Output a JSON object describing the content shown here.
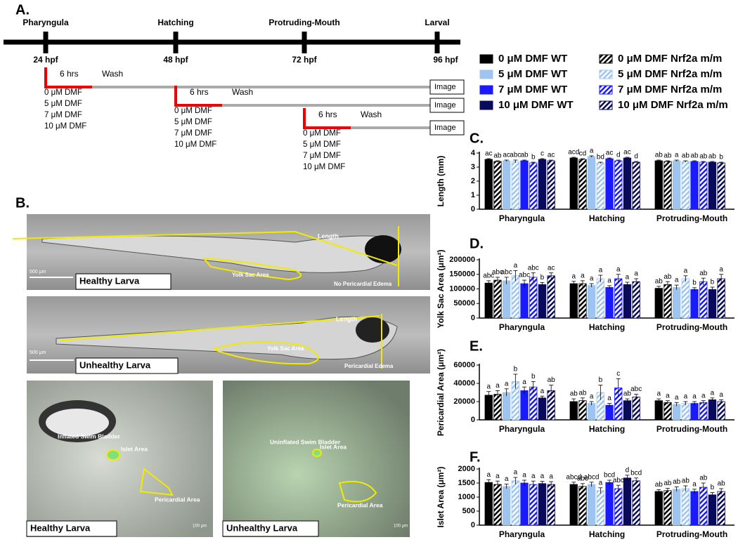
{
  "panel_labels": [
    "A.",
    "B.",
    "C.",
    "D.",
    "E.",
    "F."
  ],
  "timeline": {
    "stages": [
      {
        "name": "Pharyngula",
        "time": "24 hpf"
      },
      {
        "name": "Hatching",
        "time": "48 hpf"
      },
      {
        "name": "Protruding-Mouth",
        "time": "72 hpf"
      },
      {
        "name": "Larval",
        "time": "96 hpf"
      }
    ],
    "treatments": [
      {
        "duration": "6 hrs",
        "wash": "Wash",
        "image": "Image",
        "doses": [
          "0 μM DMF",
          "5 μM DMF",
          "7 μM DMF",
          "10 μM DMF"
        ]
      },
      {
        "duration": "6 hrs",
        "wash": "Wash",
        "image": "Image",
        "doses": [
          "0 μM DMF",
          "5 μM DMF",
          "7 μM DMF",
          "10 μM DMF"
        ]
      },
      {
        "duration": "6 hrs",
        "wash": "Wash",
        "image": "Image",
        "doses": [
          "0 μM DMF",
          "5 μM DMF",
          "7 μM DMF",
          "10 μM DMF"
        ]
      }
    ]
  },
  "images": {
    "whole": [
      {
        "label": "Healthy Larva",
        "scale": "500 μm",
        "annotations": [
          "Length",
          "Yolk Sac Area",
          "No Pericardial Edema"
        ]
      },
      {
        "label": "Unhealthy Larva",
        "scale": "500 μm",
        "annotations": [
          "Length",
          "Yolk Sac Area",
          "Pericardial Edema"
        ]
      }
    ],
    "closeup": [
      {
        "label": "Healthy Larva",
        "scale": "100 μm",
        "annotations": [
          "Inflated Swim Bladder",
          "Islet Area",
          "Pericardial Area"
        ]
      },
      {
        "label": "Unhealthy Larva",
        "scale": "100 μm",
        "annotations": [
          "Uninflated Swim Bladder",
          "Islet Area",
          "Pericardial Area"
        ]
      }
    ]
  },
  "chart_data": [
    {
      "type": "bar",
      "ylabel": "Length (mm)",
      "categories": [
        "Pharyngula",
        "Hatching",
        "Protruding-Mouth"
      ],
      "ylim": [
        0,
        4
      ],
      "yticks": [
        0,
        1,
        2,
        3,
        4
      ],
      "series": [
        {
          "name": "0 μM DMF WT",
          "color": "#000000",
          "hatch": false,
          "values": [
            3.55,
            3.65,
            3.45
          ],
          "errors": [
            0.05,
            0.05,
            0.05
          ],
          "letters": [
            "ac",
            "acd",
            "ab"
          ]
        },
        {
          "name": "0 μM DMF Nrf2a m/m",
          "color": "#000000",
          "hatch": true,
          "values": [
            3.4,
            3.55,
            3.4
          ],
          "errors": [
            0.05,
            0.05,
            0.05
          ],
          "letters": [
            "ab",
            "cd",
            "ab"
          ]
        },
        {
          "name": "5 μM DMF WT",
          "color": "#9ec5f0",
          "hatch": false,
          "values": [
            3.45,
            3.75,
            3.45
          ],
          "errors": [
            0.05,
            0.05,
            0.05
          ],
          "letters": [
            "ac",
            "a",
            "a"
          ]
        },
        {
          "name": "5 μM DMF Nrf2a m/m",
          "color": "#9ec5f0",
          "hatch": true,
          "values": [
            3.4,
            3.3,
            3.4
          ],
          "errors": [
            0.1,
            0.05,
            0.05
          ],
          "letters": [
            "abc",
            "bd",
            "ab"
          ]
        },
        {
          "name": "7 μM DMF WT",
          "color": "#1a1aff",
          "hatch": false,
          "values": [
            3.45,
            3.6,
            3.4
          ],
          "errors": [
            0.05,
            0.05,
            0.05
          ],
          "letters": [
            "ab",
            "ac",
            "ab"
          ]
        },
        {
          "name": "7 μM DMF Nrf2a m/m",
          "color": "#1a1aff",
          "hatch": true,
          "values": [
            3.3,
            3.45,
            3.35
          ],
          "errors": [
            0.05,
            0.05,
            0.05
          ],
          "letters": [
            "b",
            "d",
            "ab"
          ]
        },
        {
          "name": "10 μM DMF WT",
          "color": "#0a0a5c",
          "hatch": false,
          "values": [
            3.55,
            3.65,
            3.35
          ],
          "errors": [
            0.05,
            0.05,
            0.05
          ],
          "letters": [
            "c",
            "ac",
            "ab"
          ]
        },
        {
          "name": "10 μM DMF Nrf2a m/m",
          "color": "#0a0a5c",
          "hatch": true,
          "values": [
            3.45,
            3.35,
            3.3
          ],
          "errors": [
            0.05,
            0.05,
            0.05
          ],
          "letters": [
            "ac",
            "d",
            "b"
          ]
        }
      ]
    },
    {
      "type": "bar",
      "ylabel": "Yolk Sac Area (μm²)",
      "categories": [
        "Pharyngula",
        "Hatching",
        "Protruding-Mouth"
      ],
      "ylim": [
        0,
        200000
      ],
      "yticks": [
        0,
        50000,
        100000,
        150000,
        200000
      ],
      "series": [
        {
          "name": "0 μM DMF WT",
          "color": "#000000",
          "hatch": false,
          "values": [
            120000,
            118000,
            102000
          ],
          "errors": [
            8000,
            8000,
            7000
          ],
          "letters": [
            "abc",
            "a",
            "ab"
          ]
        },
        {
          "name": "0 μM DMF Nrf2a m/m",
          "color": "#000000",
          "hatch": true,
          "values": [
            130000,
            118000,
            115000
          ],
          "errors": [
            10000,
            10000,
            10000
          ],
          "letters": [
            "abc",
            "a",
            "ab"
          ]
        },
        {
          "name": "5 μM DMF WT",
          "color": "#9ec5f0",
          "hatch": false,
          "values": [
            128000,
            112000,
            105000
          ],
          "errors": [
            12000,
            6000,
            8000
          ],
          "letters": [
            "abc",
            "a",
            "a"
          ]
        },
        {
          "name": "5 μM DMF Nrf2a m/m",
          "color": "#9ec5f0",
          "hatch": true,
          "values": [
            145000,
            135000,
            135000
          ],
          "errors": [
            18000,
            12000,
            10000
          ],
          "letters": [
            "a",
            "a",
            "a"
          ]
        },
        {
          "name": "7 μM DMF WT",
          "color": "#1a1aff",
          "hatch": false,
          "values": [
            118000,
            105000,
            98000
          ],
          "errors": [
            12000,
            6000,
            6000
          ],
          "letters": [
            "abc",
            "a",
            "b"
          ]
        },
        {
          "name": "7 μM DMF Nrf2a m/m",
          "color": "#1a1aff",
          "hatch": true,
          "values": [
            140000,
            135000,
            125000
          ],
          "errors": [
            15000,
            15000,
            12000
          ],
          "letters": [
            "abc",
            "a",
            "ab"
          ]
        },
        {
          "name": "10 μM DMF WT",
          "color": "#0a0a5c",
          "hatch": false,
          "values": [
            115000,
            115000,
            98000
          ],
          "errors": [
            7000,
            8000,
            8000
          ],
          "letters": [
            "b",
            "a",
            "b"
          ]
        },
        {
          "name": "10 μM DMF Nrf2a m/m",
          "color": "#0a0a5c",
          "hatch": true,
          "values": [
            145000,
            125000,
            135000
          ],
          "errors": [
            10000,
            10000,
            15000
          ],
          "letters": [
            "ac",
            "a",
            "a"
          ]
        }
      ]
    },
    {
      "type": "bar",
      "ylabel": "Pericardial Area (μm²)",
      "categories": [
        "Pharyngula",
        "Hatching",
        "Protruding-Mouth"
      ],
      "ylim": [
        0,
        60000
      ],
      "yticks": [
        0,
        20000,
        40000,
        60000
      ],
      "series": [
        {
          "name": "0 μM DMF WT",
          "color": "#000000",
          "hatch": false,
          "values": [
            27000,
            20000,
            21000
          ],
          "errors": [
            4000,
            3000,
            2000
          ],
          "letters": [
            "a",
            "ab",
            "a"
          ]
        },
        {
          "name": "0 μM DMF Nrf2a m/m",
          "color": "#000000",
          "hatch": true,
          "values": [
            28000,
            21000,
            19000
          ],
          "errors": [
            4000,
            3000,
            2000
          ],
          "letters": [
            "a",
            "ab",
            "a"
          ]
        },
        {
          "name": "5 μM DMF WT",
          "color": "#9ec5f0",
          "hatch": false,
          "values": [
            30000,
            18000,
            17000
          ],
          "errors": [
            4000,
            2000,
            2000
          ],
          "letters": [
            "a",
            "a",
            "a"
          ]
        },
        {
          "name": "5 μM DMF Nrf2a m/m",
          "color": "#9ec5f0",
          "hatch": true,
          "values": [
            42000,
            30000,
            18000
          ],
          "errors": [
            8000,
            8000,
            2000
          ],
          "letters": [
            "b",
            "b",
            "a"
          ]
        },
        {
          "name": "7 μM DMF WT",
          "color": "#1a1aff",
          "hatch": false,
          "values": [
            32000,
            16000,
            18000
          ],
          "errors": [
            4000,
            2000,
            2000
          ],
          "letters": [
            "a",
            "a",
            "a"
          ]
        },
        {
          "name": "7 μM DMF Nrf2a m/m",
          "color": "#1a1aff",
          "hatch": true,
          "values": [
            36000,
            35000,
            19000
          ],
          "errors": [
            6000,
            10000,
            2000
          ],
          "letters": [
            "b",
            "c",
            "a"
          ]
        },
        {
          "name": "10 μM DMF WT",
          "color": "#0a0a5c",
          "hatch": false,
          "values": [
            24000,
            21000,
            22000
          ],
          "errors": [
            2000,
            2000,
            2000
          ],
          "letters": [
            "a",
            "ab",
            "a"
          ]
        },
        {
          "name": "10 μM DMF Nrf2a m/m",
          "color": "#0a0a5c",
          "hatch": true,
          "values": [
            32000,
            25000,
            20000
          ],
          "errors": [
            6000,
            3000,
            2000
          ],
          "letters": [
            "ab",
            "abc",
            "a"
          ]
        }
      ]
    },
    {
      "type": "bar",
      "ylabel": "Islet Area (μm²)",
      "categories": [
        "Pharyngula",
        "Hatching",
        "Protruding-Mouth"
      ],
      "ylim": [
        0,
        2000
      ],
      "yticks": [
        0,
        500,
        1000,
        1500,
        2000
      ],
      "series": [
        {
          "name": "0 μM DMF WT",
          "color": "#000000",
          "hatch": false,
          "values": [
            1520,
            1450,
            1200
          ],
          "errors": [
            100,
            80,
            60
          ],
          "letters": [
            "a",
            "abcd",
            "ab"
          ]
        },
        {
          "name": "0 μM DMF Nrf2a m/m",
          "color": "#000000",
          "hatch": true,
          "values": [
            1450,
            1380,
            1230
          ],
          "errors": [
            120,
            100,
            80
          ],
          "letters": [
            "a",
            "abc",
            "ab"
          ]
        },
        {
          "name": "5 μM DMF WT",
          "color": "#9ec5f0",
          "hatch": false,
          "values": [
            1380,
            1450,
            1280
          ],
          "errors": [
            80,
            80,
            80
          ],
          "letters": [
            "a",
            "abcd",
            "ab"
          ]
        },
        {
          "name": "5 μM DMF Nrf2a m/m",
          "color": "#9ec5f0",
          "hatch": true,
          "values": [
            1580,
            1230,
            1300
          ],
          "errors": [
            120,
            100,
            100
          ],
          "letters": [
            "a",
            "a",
            "ab"
          ]
        },
        {
          "name": "7 μM DMF WT",
          "color": "#1a1aff",
          "hatch": false,
          "values": [
            1500,
            1520,
            1200
          ],
          "errors": [
            100,
            80,
            80
          ],
          "letters": [
            "a",
            "bcd",
            "a"
          ]
        },
        {
          "name": "7 μM DMF Nrf2a m/m",
          "color": "#1a1aff",
          "hatch": true,
          "values": [
            1450,
            1300,
            1350
          ],
          "errors": [
            120,
            120,
            150
          ],
          "letters": [
            "a",
            "abc",
            "ab"
          ]
        },
        {
          "name": "10 μM DMF WT",
          "color": "#0a0a5c",
          "hatch": false,
          "values": [
            1480,
            1680,
            1080
          ],
          "errors": [
            80,
            100,
            80
          ],
          "letters": [
            "a",
            "d",
            "b"
          ]
        },
        {
          "name": "10 μM DMF Nrf2a m/m",
          "color": "#0a0a5c",
          "hatch": true,
          "values": [
            1450,
            1580,
            1200
          ],
          "errors": [
            100,
            100,
            100
          ],
          "letters": [
            "a",
            "bcd",
            "ab"
          ]
        }
      ]
    }
  ]
}
